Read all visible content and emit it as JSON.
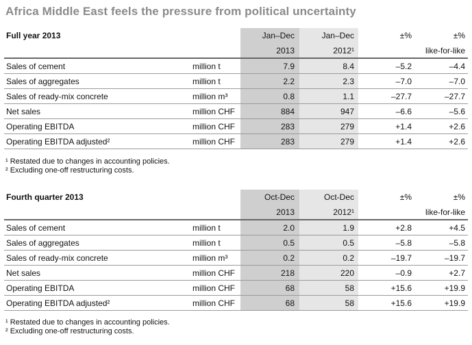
{
  "title": "Africa Middle East feels the pressure from political uncertainty",
  "sections": [
    {
      "heading": "Full year 2013",
      "col1_top": "Jan–Dec",
      "col1_bottom": "2013",
      "col2_top": "Jan–Dec",
      "col2_bottom": "2012¹",
      "pct_label": "±%",
      "lfl_top": "±%",
      "lfl_bottom": "like-for-like",
      "rows": [
        {
          "label": "Sales of cement",
          "unit": "million t",
          "v1": "7.9",
          "v2": "8.4",
          "pct": "–5.2",
          "lfl": "–4.4"
        },
        {
          "label": "Sales of aggregates",
          "unit": "million t",
          "v1": "2.2",
          "v2": "2.3",
          "pct": "–7.0",
          "lfl": "–7.0"
        },
        {
          "label": "Sales of ready-mix concrete",
          "unit": "million m³",
          "v1": "0.8",
          "v2": "1.1",
          "pct": "–27.7",
          "lfl": "–27.7"
        },
        {
          "label": "Net sales",
          "unit": "million CHF",
          "v1": "884",
          "v2": "947",
          "pct": "–6.6",
          "lfl": "–5.6"
        },
        {
          "label": "Operating EBITDA",
          "unit": "million CHF",
          "v1": "283",
          "v2": "279",
          "pct": "+1.4",
          "lfl": "+2.6"
        },
        {
          "label": "Operating EBITDA adjusted²",
          "unit": "million CHF",
          "v1": "283",
          "v2": "279",
          "pct": "+1.4",
          "lfl": "+2.6"
        }
      ],
      "footnotes": [
        "¹ Restated due to changes in accounting policies.",
        "² Excluding one-off restructuring costs."
      ]
    },
    {
      "heading": "Fourth quarter 2013",
      "col1_top": "Oct-Dec",
      "col1_bottom": "2013",
      "col2_top": "Oct-Dec",
      "col2_bottom": "2012¹",
      "pct_label": "±%",
      "lfl_top": "±%",
      "lfl_bottom": "like-for-like",
      "rows": [
        {
          "label": "Sales of cement",
          "unit": "million t",
          "v1": "2.0",
          "v2": "1.9",
          "pct": "+2.8",
          "lfl": "+4.5"
        },
        {
          "label": "Sales of aggregates",
          "unit": "million t",
          "v1": "0.5",
          "v2": "0.5",
          "pct": "–5.8",
          "lfl": "–5.8"
        },
        {
          "label": "Sales of ready-mix concrete",
          "unit": "million m³",
          "v1": "0.2",
          "v2": "0.2",
          "pct": "–19.7",
          "lfl": "–19.7"
        },
        {
          "label": "Net sales",
          "unit": "million CHF",
          "v1": "218",
          "v2": "220",
          "pct": "–0.9",
          "lfl": "+2.7"
        },
        {
          "label": "Operating EBITDA",
          "unit": "million CHF",
          "v1": "68",
          "v2": "58",
          "pct": "+15.6",
          "lfl": "+19.9"
        },
        {
          "label": "Operating EBITDA adjusted²",
          "unit": "million CHF",
          "v1": "68",
          "v2": "58",
          "pct": "+15.6",
          "lfl": "+19.9"
        }
      ],
      "footnotes": [
        "¹ Restated due to changes in accounting policies.",
        "² Excluding one-off restructuring costs."
      ]
    }
  ]
}
